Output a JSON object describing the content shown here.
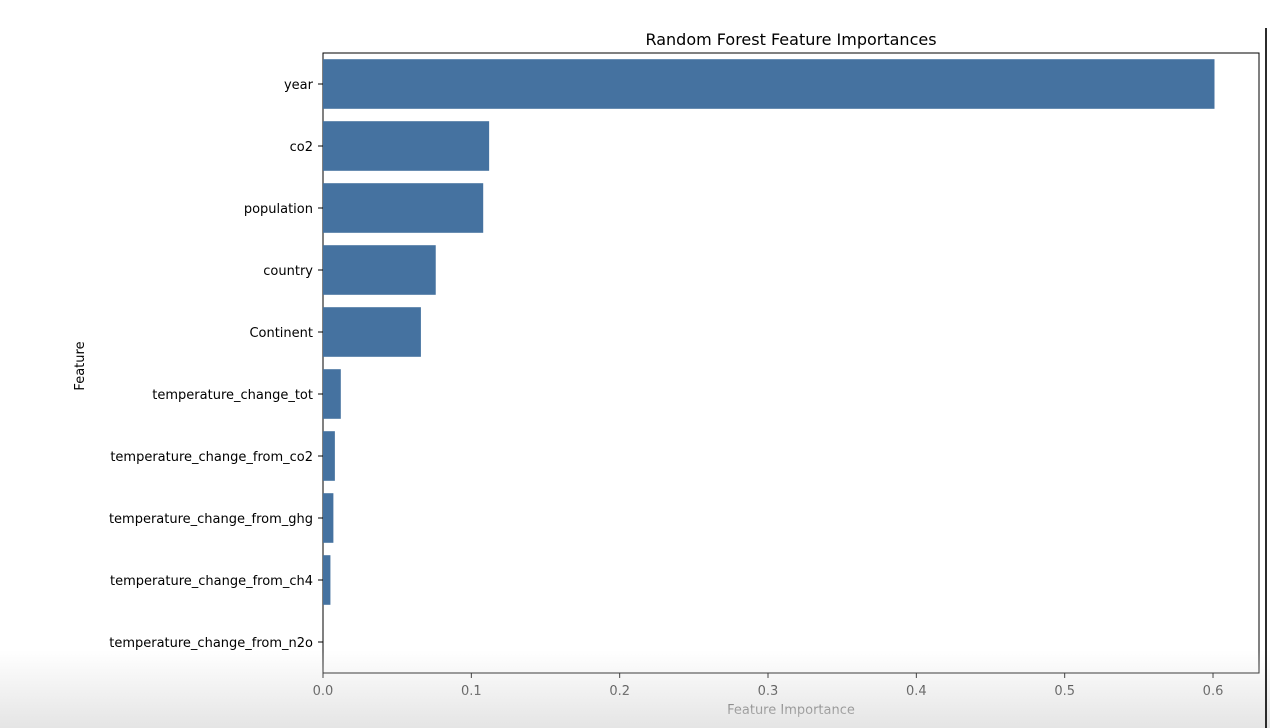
{
  "chart_data": {
    "type": "bar",
    "orientation": "horizontal",
    "title": "Random Forest Feature Importances",
    "xlabel": "Feature Importance",
    "ylabel": "Feature",
    "categories": [
      "year",
      "co2",
      "population",
      "country",
      "Continent",
      "temperature_change_tot",
      "temperature_change_from_co2",
      "temperature_change_from_ghg",
      "temperature_change_from_ch4",
      "temperature_change_from_n2o"
    ],
    "values": [
      0.601,
      0.112,
      0.108,
      0.076,
      0.066,
      0.012,
      0.008,
      0.007,
      0.005,
      0.0
    ],
    "xlim": [
      0,
      0.631
    ],
    "xticks": [
      0.0,
      0.1,
      0.2,
      0.3,
      0.4,
      0.5,
      0.6
    ],
    "xtick_labels": [
      "0.0",
      "0.1",
      "0.2",
      "0.3",
      "0.4",
      "0.5",
      "0.6"
    ],
    "bar_color": "#4572a0",
    "grid": false
  }
}
